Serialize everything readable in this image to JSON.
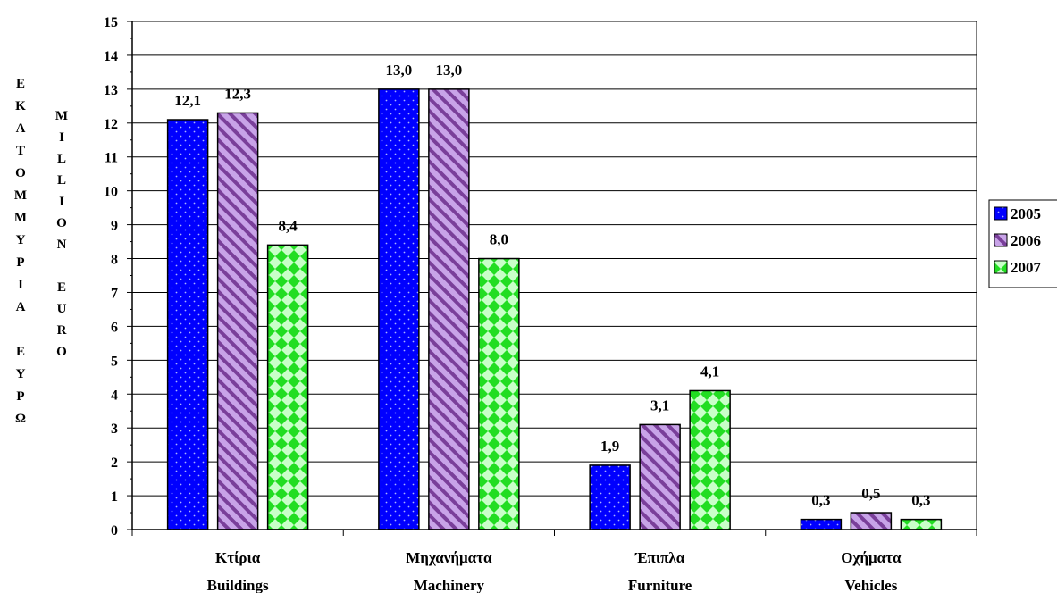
{
  "chart_data": {
    "type": "bar",
    "categories": [
      "Κτίρια",
      "Μηχανήματα",
      "Έπιπλα",
      "Οχήματα"
    ],
    "categories_en": [
      "Buildings",
      "Machinery",
      "Furniture",
      "Vehicles"
    ],
    "series": [
      {
        "name": "2005",
        "values": [
          12.1,
          13.0,
          1.9,
          0.3
        ],
        "labels": [
          "12,1",
          "13,0",
          "1,9",
          "0,3"
        ],
        "color": "#0000ff",
        "pattern": "dots"
      },
      {
        "name": "2006",
        "values": [
          12.3,
          13.0,
          3.1,
          0.5
        ],
        "labels": [
          "12,3",
          "13,0",
          "3,1",
          "0,5"
        ],
        "color": "#b07fd6",
        "pattern": "diagonal-stripes"
      },
      {
        "name": "2007",
        "values": [
          8.4,
          8.0,
          4.1,
          0.3
        ],
        "labels": [
          "8,4",
          "8,0",
          "4,1",
          "0,3"
        ],
        "color": "#33dd33",
        "pattern": "checker"
      }
    ],
    "ylabel_gr": [
      "Ε",
      "Κ",
      "Α",
      "Τ",
      "Ο",
      "Μ",
      "Μ",
      "Υ",
      "Ρ",
      "Ι",
      "Α",
      "",
      "Ε",
      "Υ",
      "Ρ",
      "Ω"
    ],
    "ylabel_en": [
      "M",
      "I",
      "L",
      "L",
      "I",
      "O",
      "N",
      "",
      "E",
      "U",
      "R",
      "O"
    ],
    "ylim": [
      0,
      15
    ],
    "yticks": [
      "0",
      "1",
      "2",
      "3",
      "4",
      "5",
      "6",
      "7",
      "8",
      "9",
      "10",
      "11",
      "12",
      "13",
      "14",
      "15"
    ],
    "grid": true,
    "legend": "right"
  }
}
